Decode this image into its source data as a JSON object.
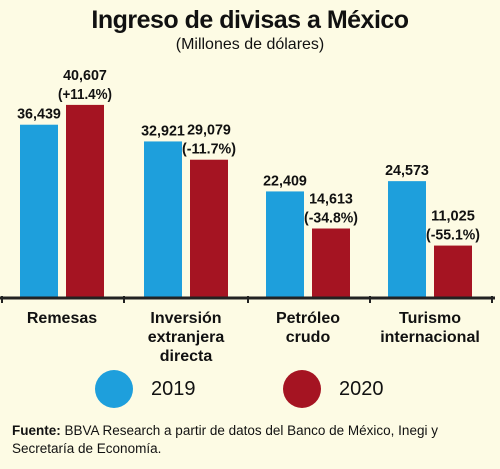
{
  "chart_data": {
    "type": "bar",
    "title": "Ingreso de divisas a México",
    "subtitle": "(Millones de dólares)",
    "categories": [
      [
        "Remesas"
      ],
      [
        "Inversión",
        "extranjera",
        "directa"
      ],
      [
        "Petróleo",
        "crudo"
      ],
      [
        "Turismo",
        "internacional"
      ]
    ],
    "series": [
      {
        "name": "2019",
        "color": "#1e9fdc",
        "values": [
          36439,
          32921,
          22409,
          24573
        ],
        "labels": [
          [
            "36,439"
          ],
          [
            "32,921"
          ],
          [
            "22,409"
          ],
          [
            "24,573"
          ]
        ]
      },
      {
        "name": "2020",
        "color": "#a51422",
        "values": [
          40607,
          29079,
          14613,
          11025
        ],
        "labels": [
          [
            "40,607",
            "(+11.4%)"
          ],
          [
            "29,079",
            "(-11.7%)"
          ],
          [
            "14,613",
            "(-34.8%)"
          ],
          [
            "11,025",
            "(-55.1%)"
          ]
        ]
      }
    ],
    "ylim": [
      0,
      45000
    ],
    "legend": "bottom",
    "grid": false
  },
  "footnote": {
    "label": "Fuente:",
    "text": " BBVA Research a partir de datos del Banco de México, Inegi y Secretaría de Economía."
  }
}
